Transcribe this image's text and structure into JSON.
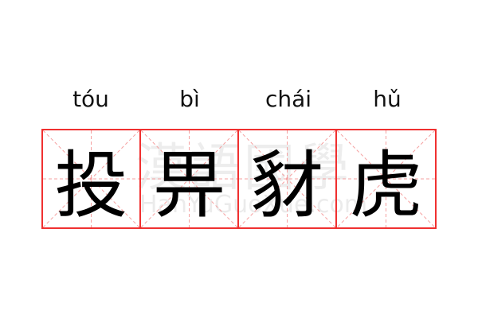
{
  "idiom": {
    "characters": [
      "投",
      "畀",
      "豺",
      "虎"
    ],
    "pinyin": [
      "tóu",
      "bì",
      "chái",
      "hǔ"
    ]
  },
  "watermark": {
    "cn": "漢語國學",
    "en": "HanYuGuoXue.com"
  },
  "colors": {
    "grid": "#f03030",
    "guide": "#f5a0a0"
  }
}
